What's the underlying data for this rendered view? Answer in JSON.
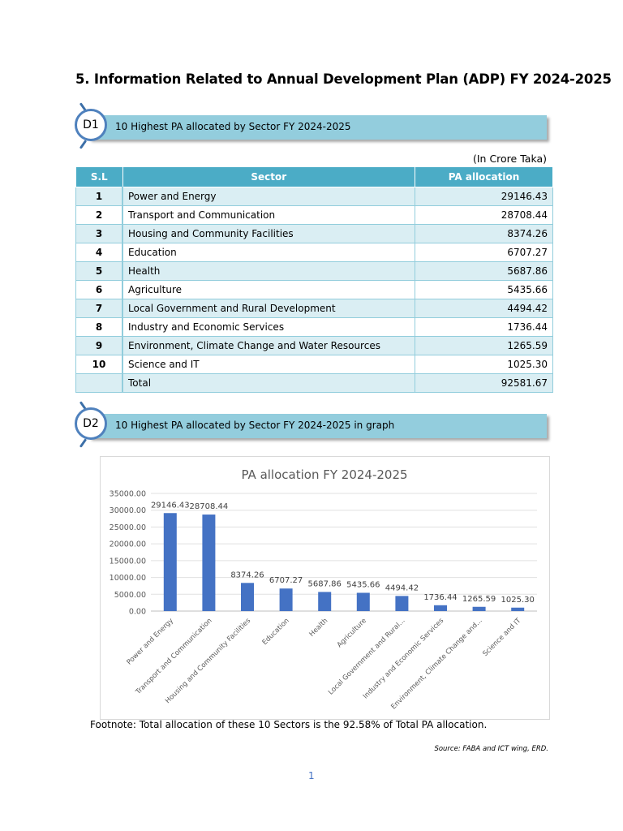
{
  "title": "5. Information Related to Annual Development Plan (ADP) FY 2024-2025",
  "d1": {
    "badge": "D1",
    "label": "10 Highest PA allocated by Sector FY 2024-2025"
  },
  "d2": {
    "badge": "D2",
    "label": "10 Highest PA allocated by Sector FY 2024-2025 in graph"
  },
  "unit_note": "(In Crore Taka)",
  "table": {
    "headers": [
      "S.L",
      "Sector",
      "PA allocation"
    ],
    "rows": [
      {
        "sl": "1",
        "sector": "Power and Energy",
        "value": "29146.43"
      },
      {
        "sl": "2",
        "sector": "Transport and Communication",
        "value": "28708.44"
      },
      {
        "sl": "3",
        "sector": "Housing and Community Facilities",
        "value": "8374.26"
      },
      {
        "sl": "4",
        "sector": "Education",
        "value": "6707.27"
      },
      {
        "sl": "5",
        "sector": "Health",
        "value": "5687.86"
      },
      {
        "sl": "6",
        "sector": "Agriculture",
        "value": "5435.66"
      },
      {
        "sl": "7",
        "sector": "Local Government and Rural Development",
        "value": "4494.42"
      },
      {
        "sl": "8",
        "sector": "Industry and Economic Services",
        "value": "1736.44"
      },
      {
        "sl": "9",
        "sector": "Environment, Climate Change and Water Resources",
        "value": "1265.59"
      },
      {
        "sl": "10",
        "sector": "Science and IT",
        "value": "1025.30"
      }
    ],
    "total": {
      "sl": "",
      "sector": "Total",
      "value": "92581.67"
    }
  },
  "chart_data": {
    "type": "bar",
    "title": "PA allocation FY 2024-2025",
    "categories": [
      "Power and Energy",
      "Transport and Communication",
      "Housing and Community Facilities",
      "Education",
      "Health",
      "Agriculture",
      "Local Government and Rural...",
      "Industry and Economic Services",
      "Environment, Climate Change and...",
      "Science and IT"
    ],
    "values": [
      29146.43,
      28708.44,
      8374.26,
      6707.27,
      5687.86,
      5435.66,
      4494.42,
      1736.44,
      1265.59,
      1025.3
    ],
    "data_labels": [
      "29146.43",
      "28708.44",
      "8374.26",
      "6707.27",
      "5687.86",
      "5435.66",
      "4494.42",
      "1736.44",
      "1265.59",
      "1025.30"
    ],
    "ylim": [
      0,
      35000
    ],
    "yticks": [
      "0.00",
      "5000.00",
      "10000.00",
      "15000.00",
      "20000.00",
      "25000.00",
      "30000.00",
      "35000.00"
    ],
    "grid": true,
    "bar_color": "#4472c4",
    "xlabel": "",
    "ylabel": ""
  },
  "footnote": "Footnote: Total allocation of these 10 Sectors is the 92.58% of Total PA allocation.",
  "source": "Source: FABA and ICT wing, ERD.",
  "page_number": "1"
}
